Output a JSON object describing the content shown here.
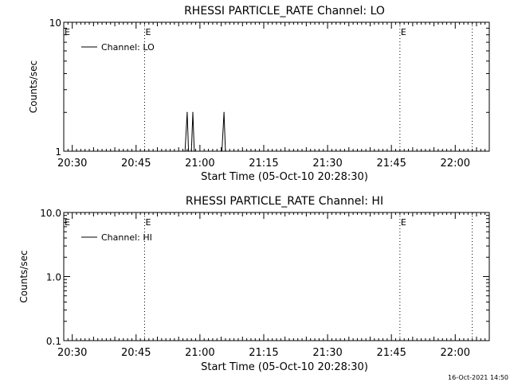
{
  "footer": {
    "timestamp": "16-Oct-2021 14:50"
  },
  "chart_data": [
    {
      "type": "line",
      "title": "RHESSI PARTICLE_RATE Channel: LO",
      "xlabel": "Start Time (05-Oct-10 20:28:30)",
      "ylabel": "Counts/sec",
      "x_unit": "minutes",
      "xlim": [
        "20:28",
        "22:08"
      ],
      "yscale": "log",
      "ylim": [
        1,
        10
      ],
      "yticks": [
        {
          "value": 1,
          "label": "1"
        },
        {
          "value": 10,
          "label": "10"
        }
      ],
      "xticks": [
        "20:30",
        "20:45",
        "21:00",
        "21:15",
        "21:30",
        "21:45",
        "22:00"
      ],
      "legend": {
        "placement": "top-left",
        "entries": [
          "Channel: LO"
        ]
      },
      "event_markers": [
        {
          "time": "20:47",
          "label": "E"
        },
        {
          "time": "21:47",
          "label": "E"
        },
        {
          "time": "22:04",
          "label": ""
        }
      ],
      "edge_marker": "E",
      "series": [
        {
          "name": "Channel: LO",
          "points": [
            [
              "20:56:30",
              1
            ],
            [
              "20:57:00",
              2
            ],
            [
              "20:57:20",
              1
            ],
            [
              "20:58:00",
              1
            ],
            [
              "20:58:20",
              2
            ],
            [
              "20:58:40",
              1
            ],
            [
              "21:05:10",
              1
            ],
            [
              "21:05:40",
              2
            ],
            [
              "21:06:00",
              1
            ]
          ]
        }
      ]
    },
    {
      "type": "line",
      "title": "RHESSI PARTICLE_RATE Channel: HI",
      "xlabel": "Start Time (05-Oct-10 20:28:30)",
      "ylabel": "Counts/sec",
      "x_unit": "minutes",
      "xlim": [
        "20:28",
        "22:08"
      ],
      "yscale": "log",
      "ylim": [
        0.1,
        10
      ],
      "yticks": [
        {
          "value": 0.1,
          "label": "0.1"
        },
        {
          "value": 1,
          "label": "1.0"
        },
        {
          "value": 10,
          "label": "10.0"
        }
      ],
      "xticks": [
        "20:30",
        "20:45",
        "21:00",
        "21:15",
        "21:30",
        "21:45",
        "22:00"
      ],
      "legend": {
        "placement": "top-left",
        "entries": [
          "Channel: HI"
        ]
      },
      "event_markers": [
        {
          "time": "20:47",
          "label": "E"
        },
        {
          "time": "21:47",
          "label": "E"
        },
        {
          "time": "22:04",
          "label": ""
        }
      ],
      "edge_marker": "E",
      "series": [
        {
          "name": "Channel: HI",
          "points": []
        }
      ]
    }
  ]
}
